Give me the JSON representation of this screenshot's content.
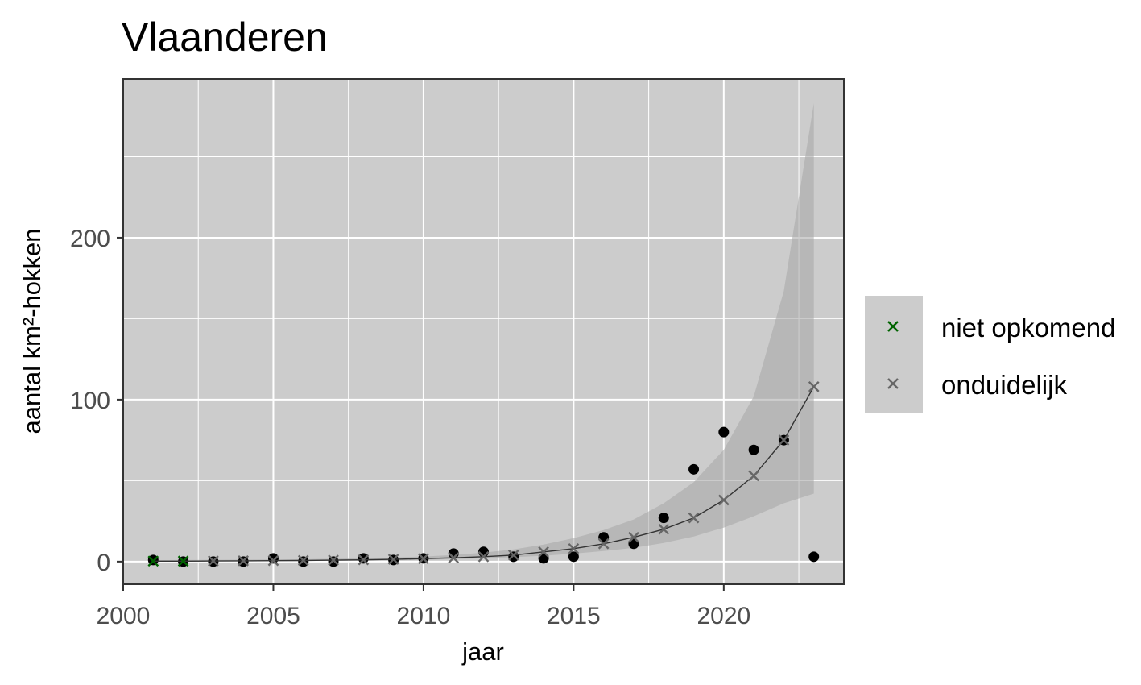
{
  "chart_data": {
    "type": "scatter",
    "title": "Vlaanderen",
    "xlabel": "jaar",
    "ylabel": "aantal km²-hokken",
    "xlim": [
      2000,
      2024
    ],
    "ylim": [
      -14,
      298
    ],
    "x_ticks": [
      2000,
      2005,
      2010,
      2015,
      2020
    ],
    "y_ticks": [
      0,
      100,
      200
    ],
    "grid": true,
    "legend_position": "right",
    "legend_entries": [
      {
        "label": "niet opkomend",
        "color": "#006400"
      },
      {
        "label": "onduidelijk",
        "color": "#666666"
      }
    ],
    "observed": {
      "color": "#000000",
      "x": [
        2001,
        2002,
        2003,
        2004,
        2005,
        2006,
        2007,
        2008,
        2009,
        2010,
        2011,
        2012,
        2013,
        2014,
        2015,
        2016,
        2017,
        2018,
        2019,
        2020,
        2021,
        2022,
        2023
      ],
      "y": [
        1,
        0,
        0,
        0,
        2,
        0,
        0,
        2,
        1,
        2,
        5,
        6,
        3,
        2,
        3,
        15,
        11,
        27,
        57,
        80,
        69,
        75,
        3
      ]
    },
    "fit": {
      "x": [
        2001,
        2002,
        2003,
        2004,
        2005,
        2006,
        2007,
        2008,
        2009,
        2010,
        2011,
        2012,
        2013,
        2014,
        2015,
        2016,
        2017,
        2018,
        2019,
        2020,
        2021,
        2022,
        2023
      ],
      "y": [
        0.3,
        0.3,
        0.4,
        0.5,
        0.6,
        0.7,
        0.9,
        1.1,
        1.4,
        1.8,
        2.3,
        3,
        4,
        6,
        8,
        11,
        15,
        20,
        27,
        38,
        53,
        75,
        108
      ],
      "lower": [
        0.1,
        0.1,
        0.2,
        0.2,
        0.3,
        0.4,
        0.5,
        0.6,
        0.8,
        1.1,
        1.5,
        2,
        2.7,
        3.6,
        4.9,
        6.5,
        8.5,
        11.5,
        15.5,
        21,
        28,
        36,
        42
      ],
      "upper": [
        0.9,
        1,
        1.1,
        1.2,
        1.3,
        1.5,
        1.7,
        2,
        2.5,
        3.1,
        4,
        5.5,
        7.5,
        10.5,
        14.5,
        19.5,
        26,
        36,
        49,
        69,
        102,
        167,
        283
      ]
    },
    "markers": {
      "x": [
        2001,
        2002,
        2003,
        2004,
        2005,
        2006,
        2007,
        2008,
        2009,
        2010,
        2011,
        2012,
        2013,
        2014,
        2015,
        2016,
        2017,
        2018,
        2019,
        2020,
        2021,
        2022,
        2023
      ],
      "y": [
        0.3,
        0.3,
        0.4,
        0.5,
        0.6,
        0.7,
        0.9,
        1.1,
        1.4,
        1.8,
        2.3,
        3,
        4,
        6,
        8,
        11,
        15,
        20,
        27,
        38,
        53,
        75,
        108
      ],
      "class": [
        "niet opkomend",
        "niet opkomend",
        "onduidelijk",
        "onduidelijk",
        "onduidelijk",
        "onduidelijk",
        "onduidelijk",
        "onduidelijk",
        "onduidelijk",
        "onduidelijk",
        "onduidelijk",
        "onduidelijk",
        "onduidelijk",
        "onduidelijk",
        "onduidelijk",
        "onduidelijk",
        "onduidelijk",
        "onduidelijk",
        "onduidelijk",
        "onduidelijk",
        "onduidelijk",
        "onduidelijk",
        "onduidelijk"
      ]
    },
    "panel_background": "#cccccc",
    "ribbon_color": "#a6a6a6",
    "line_color": "#333333"
  }
}
